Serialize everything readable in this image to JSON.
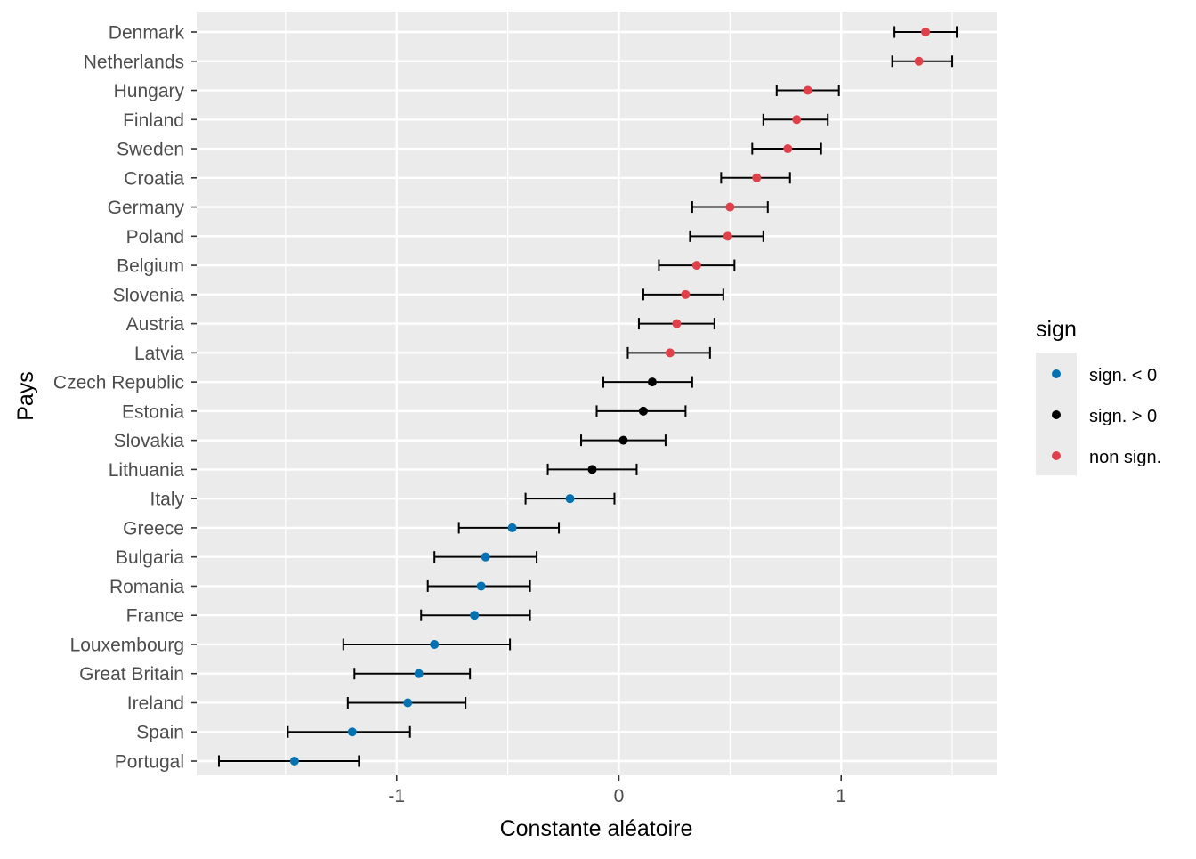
{
  "chart_data": {
    "type": "scatter",
    "subtype": "dot-and-whisker",
    "title": "",
    "xlabel": "Constante aléatoire",
    "ylabel": "Pays",
    "xlim": [
      -1.9,
      1.7
    ],
    "xticks": [
      -1,
      0,
      1
    ],
    "xtick_labels": [
      "-1",
      "0",
      "1"
    ],
    "grid": true,
    "legend": {
      "title": "sign",
      "placement": "right",
      "entries": [
        {
          "label": "sign. < 0",
          "color": "#0072B2"
        },
        {
          "label": "sign. > 0",
          "color": "#000000"
        },
        {
          "label": "non sign.",
          "color": "#E0404A"
        }
      ]
    },
    "colors": {
      "panel": "#EBEBEB",
      "grid": "#FFFFFF",
      "errorbar": "#000000",
      "tick_text": "#4D4D4D"
    },
    "points": [
      {
        "country": "Denmark",
        "estimate": 1.38,
        "lower": 1.24,
        "upper": 1.52,
        "sign": "non sign."
      },
      {
        "country": "Netherlands",
        "estimate": 1.35,
        "lower": 1.23,
        "upper": 1.5,
        "sign": "non sign."
      },
      {
        "country": "Hungary",
        "estimate": 0.85,
        "lower": 0.71,
        "upper": 0.99,
        "sign": "non sign."
      },
      {
        "country": "Finland",
        "estimate": 0.8,
        "lower": 0.65,
        "upper": 0.94,
        "sign": "non sign."
      },
      {
        "country": "Sweden",
        "estimate": 0.76,
        "lower": 0.6,
        "upper": 0.91,
        "sign": "non sign."
      },
      {
        "country": "Croatia",
        "estimate": 0.62,
        "lower": 0.46,
        "upper": 0.77,
        "sign": "non sign."
      },
      {
        "country": "Germany",
        "estimate": 0.5,
        "lower": 0.33,
        "upper": 0.67,
        "sign": "non sign."
      },
      {
        "country": "Poland",
        "estimate": 0.49,
        "lower": 0.32,
        "upper": 0.65,
        "sign": "non sign."
      },
      {
        "country": "Belgium",
        "estimate": 0.35,
        "lower": 0.18,
        "upper": 0.52,
        "sign": "non sign."
      },
      {
        "country": "Slovenia",
        "estimate": 0.3,
        "lower": 0.11,
        "upper": 0.47,
        "sign": "non sign."
      },
      {
        "country": "Austria",
        "estimate": 0.26,
        "lower": 0.09,
        "upper": 0.43,
        "sign": "non sign."
      },
      {
        "country": "Latvia",
        "estimate": 0.23,
        "lower": 0.04,
        "upper": 0.41,
        "sign": "non sign."
      },
      {
        "country": "Czech Republic",
        "estimate": 0.15,
        "lower": -0.07,
        "upper": 0.33,
        "sign": "sign. > 0"
      },
      {
        "country": "Estonia",
        "estimate": 0.11,
        "lower": -0.1,
        "upper": 0.3,
        "sign": "sign. > 0"
      },
      {
        "country": "Slovakia",
        "estimate": 0.02,
        "lower": -0.17,
        "upper": 0.21,
        "sign": "sign. > 0"
      },
      {
        "country": "Lithuania",
        "estimate": -0.12,
        "lower": -0.32,
        "upper": 0.08,
        "sign": "sign. > 0"
      },
      {
        "country": "Italy",
        "estimate": -0.22,
        "lower": -0.42,
        "upper": -0.02,
        "sign": "sign. < 0"
      },
      {
        "country": "Greece",
        "estimate": -0.48,
        "lower": -0.72,
        "upper": -0.27,
        "sign": "sign. < 0"
      },
      {
        "country": "Bulgaria",
        "estimate": -0.6,
        "lower": -0.83,
        "upper": -0.37,
        "sign": "sign. < 0"
      },
      {
        "country": "Romania",
        "estimate": -0.62,
        "lower": -0.86,
        "upper": -0.4,
        "sign": "sign. < 0"
      },
      {
        "country": "France",
        "estimate": -0.65,
        "lower": -0.89,
        "upper": -0.4,
        "sign": "sign. < 0"
      },
      {
        "country": "Louxembourg",
        "estimate": -0.83,
        "lower": -1.24,
        "upper": -0.49,
        "sign": "sign. < 0"
      },
      {
        "country": "Great Britain",
        "estimate": -0.9,
        "lower": -1.19,
        "upper": -0.67,
        "sign": "sign. < 0"
      },
      {
        "country": "Ireland",
        "estimate": -0.95,
        "lower": -1.22,
        "upper": -0.69,
        "sign": "sign. < 0"
      },
      {
        "country": "Spain",
        "estimate": -1.2,
        "lower": -1.49,
        "upper": -0.94,
        "sign": "sign. < 0"
      },
      {
        "country": "Portugal",
        "estimate": -1.46,
        "lower": -1.8,
        "upper": -1.17,
        "sign": "sign. < 0"
      }
    ]
  }
}
